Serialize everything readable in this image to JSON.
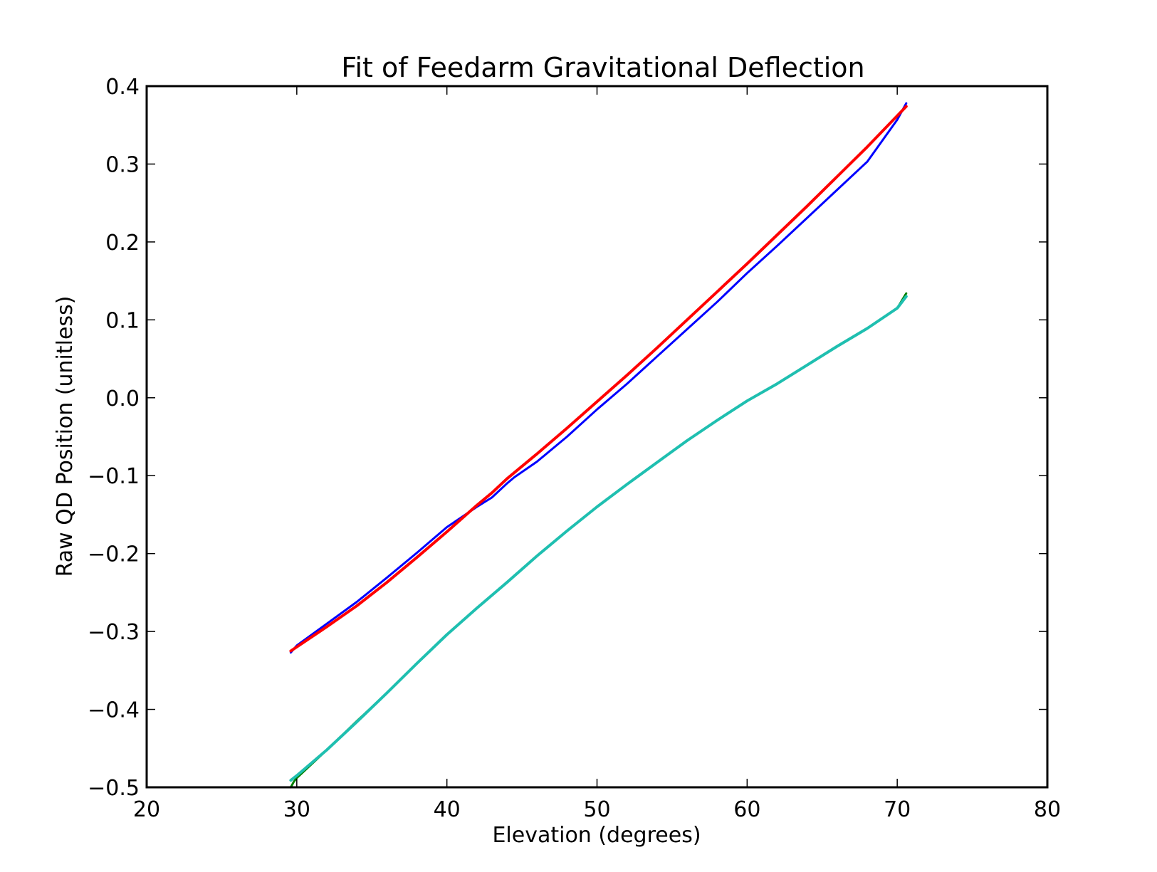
{
  "chart_data": {
    "type": "line",
    "title": "Fit of Feedarm Gravitational Deflection",
    "xlabel": "Elevation (degrees)",
    "ylabel": "Raw QD Position (unitless)",
    "xlim": [
      20,
      80
    ],
    "ylim": [
      -0.5,
      0.4
    ],
    "xticks": [
      20,
      30,
      40,
      50,
      60,
      70,
      80
    ],
    "xtick_labels": [
      "20",
      "30",
      "40",
      "50",
      "60",
      "70",
      "80"
    ],
    "yticks": [
      -0.5,
      -0.4,
      -0.3,
      -0.2,
      -0.1,
      0.0,
      0.1,
      0.2,
      0.3,
      0.4
    ],
    "ytick_labels": [
      "−0.5",
      "−0.4",
      "−0.3",
      "−0.2",
      "−0.1",
      "0.0",
      "0.1",
      "0.2",
      "0.3",
      "0.4"
    ],
    "grid": false,
    "legend": "none",
    "series": [
      {
        "color": "#0000ff",
        "width": 3,
        "x": [
          29.6,
          30.0,
          32.0,
          34.0,
          36.0,
          38.0,
          40.0,
          42.0,
          43.0,
          44.0,
          44.5,
          46.0,
          48.0,
          50.0,
          52.0,
          54.0,
          56.0,
          58.0,
          60.0,
          62.0,
          64.0,
          66.0,
          68.0,
          70.0,
          70.6
        ],
        "y": [
          -0.327,
          -0.318,
          -0.29,
          -0.262,
          -0.231,
          -0.199,
          -0.166,
          -0.14,
          -0.128,
          -0.11,
          -0.102,
          -0.082,
          -0.05,
          -0.015,
          0.018,
          0.053,
          0.088,
          0.123,
          0.16,
          0.195,
          0.231,
          0.267,
          0.303,
          0.357,
          0.378
        ]
      },
      {
        "color": "#ff0000",
        "width": 4,
        "x": [
          29.6,
          32.0,
          34.0,
          36.0,
          38.0,
          40.0,
          42.0,
          43.0,
          44.0,
          46.0,
          48.0,
          50.0,
          52.0,
          54.0,
          56.0,
          58.0,
          60.0,
          62.0,
          64.0,
          66.0,
          68.0,
          70.0,
          70.6
        ],
        "y": [
          -0.325,
          -0.294,
          -0.267,
          -0.237,
          -0.205,
          -0.172,
          -0.138,
          -0.122,
          -0.104,
          -0.072,
          -0.039,
          -0.005,
          0.029,
          0.064,
          0.1,
          0.136,
          0.172,
          0.209,
          0.246,
          0.284,
          0.322,
          0.362,
          0.374
        ]
      },
      {
        "color": "#008000",
        "width": 3,
        "x": [
          29.6,
          29.8,
          30.0,
          32.0,
          34.0,
          36.0,
          38.0,
          40.0,
          42.0,
          44.0,
          46.0,
          48.0,
          50.0,
          52.0,
          54.0,
          56.0,
          58.0,
          60.0,
          62.0,
          64.0,
          66.0,
          68.0,
          70.0,
          70.6
        ],
        "y": [
          -0.5,
          -0.493,
          -0.488,
          -0.452,
          -0.415,
          -0.379,
          -0.341,
          -0.304,
          -0.27,
          -0.237,
          -0.203,
          -0.171,
          -0.14,
          -0.111,
          -0.083,
          -0.055,
          -0.029,
          -0.004,
          0.018,
          0.042,
          0.066,
          0.089,
          0.115,
          0.134
        ]
      },
      {
        "color": "#1fbfb0",
        "width": 4,
        "x": [
          29.6,
          30.0,
          32.0,
          34.0,
          36.0,
          38.0,
          40.0,
          42.0,
          44.0,
          46.0,
          48.0,
          50.0,
          52.0,
          54.0,
          56.0,
          58.0,
          60.0,
          62.0,
          64.0,
          66.0,
          68.0,
          70.0,
          70.6
        ],
        "y": [
          -0.491,
          -0.485,
          -0.452,
          -0.416,
          -0.379,
          -0.341,
          -0.304,
          -0.27,
          -0.237,
          -0.203,
          -0.171,
          -0.14,
          -0.111,
          -0.083,
          -0.055,
          -0.029,
          -0.004,
          0.018,
          0.042,
          0.066,
          0.089,
          0.115,
          0.13
        ]
      }
    ]
  }
}
